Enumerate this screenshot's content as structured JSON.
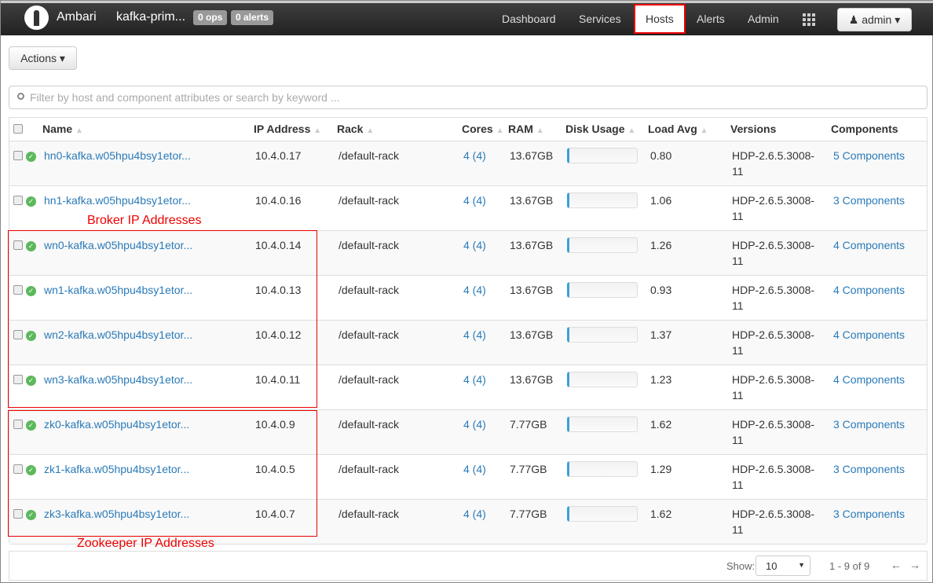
{
  "nav": {
    "brand": "Ambari",
    "cluster": "kafka-prim...",
    "ops_badge": "0 ops",
    "alerts_badge": "0 alerts",
    "links": [
      "Dashboard",
      "Services",
      "Hosts",
      "Alerts",
      "Admin"
    ],
    "active": "Hosts",
    "user": "admin ▾"
  },
  "toolbar": {
    "actions_label": "Actions ▾"
  },
  "search": {
    "placeholder": "Filter by host and component attributes or search by keyword ..."
  },
  "table": {
    "headers": [
      "Name",
      "IP Address",
      "Rack",
      "Cores",
      "RAM",
      "Disk Usage",
      "Load Avg",
      "Versions",
      "Components"
    ],
    "rows": [
      {
        "name": "hn0-kafka.w05hpu4bsy1etor...",
        "ip": "10.4.0.17",
        "rack": "/default-rack",
        "cores": "4 (4)",
        "ram": "13.67GB",
        "load": "0.80",
        "version1": "HDP-2.6.5.3008-",
        "version2": "11",
        "components": "5 Components"
      },
      {
        "name": "hn1-kafka.w05hpu4bsy1etor...",
        "ip": "10.4.0.16",
        "rack": "/default-rack",
        "cores": "4 (4)",
        "ram": "13.67GB",
        "load": "1.06",
        "version1": "HDP-2.6.5.3008-",
        "version2": "11",
        "components": "3 Components"
      },
      {
        "name": "wn0-kafka.w05hpu4bsy1etor...",
        "ip": "10.4.0.14",
        "rack": "/default-rack",
        "cores": "4 (4)",
        "ram": "13.67GB",
        "load": "1.26",
        "version1": "HDP-2.6.5.3008-",
        "version2": "11",
        "components": "4 Components"
      },
      {
        "name": "wn1-kafka.w05hpu4bsy1etor...",
        "ip": "10.4.0.13",
        "rack": "/default-rack",
        "cores": "4 (4)",
        "ram": "13.67GB",
        "load": "0.93",
        "version1": "HDP-2.6.5.3008-",
        "version2": "11",
        "components": "4 Components"
      },
      {
        "name": "wn2-kafka.w05hpu4bsy1etor...",
        "ip": "10.4.0.12",
        "rack": "/default-rack",
        "cores": "4 (4)",
        "ram": "13.67GB",
        "load": "1.37",
        "version1": "HDP-2.6.5.3008-",
        "version2": "11",
        "components": "4 Components"
      },
      {
        "name": "wn3-kafka.w05hpu4bsy1etor...",
        "ip": "10.4.0.11",
        "rack": "/default-rack",
        "cores": "4 (4)",
        "ram": "13.67GB",
        "load": "1.23",
        "version1": "HDP-2.6.5.3008-",
        "version2": "11",
        "components": "4 Components"
      },
      {
        "name": "zk0-kafka.w05hpu4bsy1etor...",
        "ip": "10.4.0.9",
        "rack": "/default-rack",
        "cores": "4 (4)",
        "ram": "7.77GB",
        "load": "1.62",
        "version1": "HDP-2.6.5.3008-",
        "version2": "11",
        "components": "3 Components"
      },
      {
        "name": "zk1-kafka.w05hpu4bsy1etor...",
        "ip": "10.4.0.5",
        "rack": "/default-rack",
        "cores": "4 (4)",
        "ram": "7.77GB",
        "load": "1.29",
        "version1": "HDP-2.6.5.3008-",
        "version2": "11",
        "components": "3 Components"
      },
      {
        "name": "zk3-kafka.w05hpu4bsy1etor...",
        "ip": "10.4.0.7",
        "rack": "/default-rack",
        "cores": "4 (4)",
        "ram": "7.77GB",
        "load": "1.62",
        "version1": "HDP-2.6.5.3008-",
        "version2": "11",
        "components": "3 Components"
      }
    ]
  },
  "annotations": {
    "broker": "Broker IP Addresses",
    "zookeeper": "Zookeeper IP Addresses"
  },
  "footer": {
    "show_label": "Show:",
    "page_size": "10",
    "range": "1 - 9 of 9"
  },
  "colors": {
    "link": "#2a7ab8",
    "annotation": "#ee0000",
    "status_ok": "#5cb85c"
  }
}
